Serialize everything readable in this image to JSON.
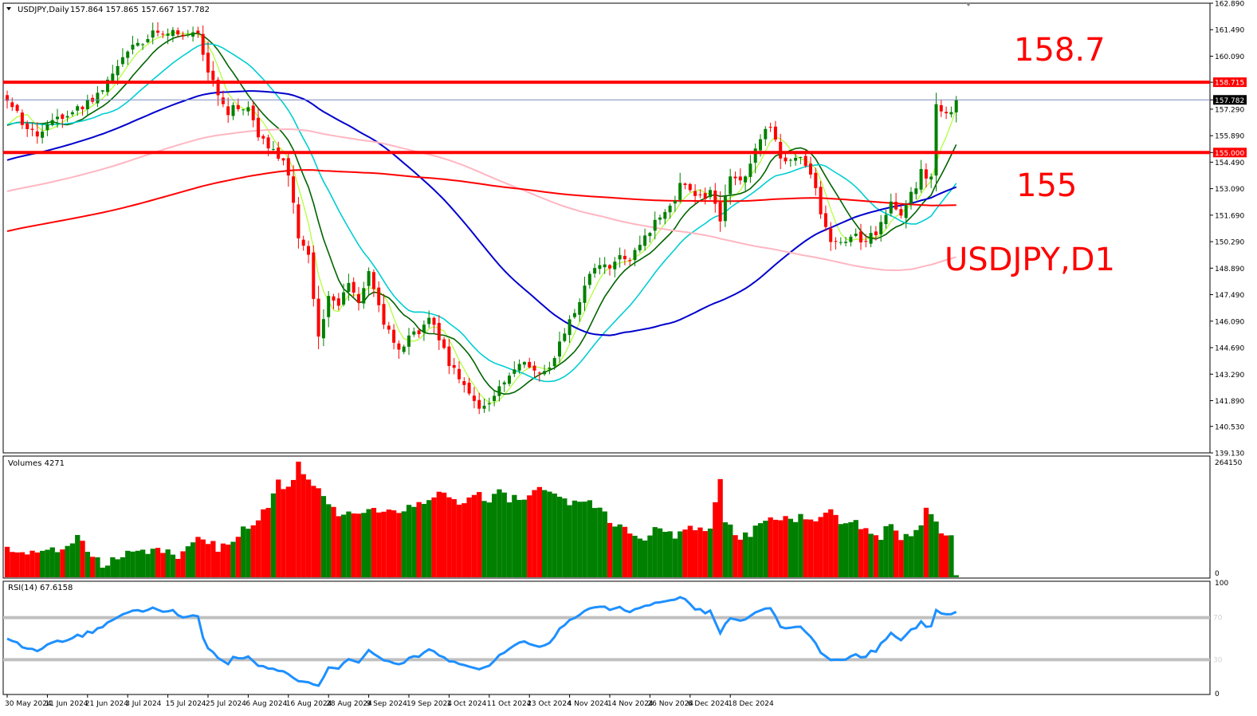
{
  "chart_data": [
    {
      "type": "candlestick",
      "title": "USDJPY,Daily",
      "ohlc_header": "157.864 157.865 157.667 157.782",
      "annotation": "USDJPY,D1",
      "ylim": [
        139.13,
        162.89
      ],
      "y_ticks": [
        "162.890",
        "161.490",
        "160.090",
        "158.715",
        "157.782",
        "157.290",
        "155.890",
        "155.000",
        "154.490",
        "153.090",
        "151.690",
        "150.290",
        "148.890",
        "147.490",
        "146.090",
        "144.690",
        "143.290",
        "141.890",
        "140.530",
        "139.130"
      ],
      "current_price": 157.782,
      "horizontal_lines": [
        {
          "value": 158.715,
          "label": "158.715",
          "annotation": "158.7"
        },
        {
          "value": 155.0,
          "label": "155.000",
          "annotation": "155"
        }
      ],
      "close_anchors": [
        [
          0,
          157.6
        ],
        [
          6,
          155.8
        ],
        [
          10,
          156.8
        ],
        [
          15,
          157.4
        ],
        [
          20,
          158.6
        ],
        [
          25,
          160.6
        ],
        [
          30,
          161.5
        ],
        [
          34,
          161.2
        ],
        [
          38,
          161.4
        ],
        [
          40,
          159.3
        ],
        [
          44,
          157.2
        ],
        [
          48,
          157.5
        ],
        [
          50,
          156.0
        ],
        [
          53,
          155.0
        ],
        [
          56,
          154.0
        ],
        [
          58,
          150.6
        ],
        [
          60,
          149.5
        ],
        [
          62,
          145.3
        ],
        [
          64,
          147.5
        ],
        [
          66,
          146.8
        ],
        [
          68,
          148.0
        ],
        [
          70,
          147.2
        ],
        [
          72,
          148.5
        ],
        [
          74,
          146.8
        ],
        [
          76,
          145.5
        ],
        [
          78,
          144.4
        ],
        [
          80,
          145.1
        ],
        [
          82,
          145.6
        ],
        [
          84,
          146.3
        ],
        [
          86,
          145.1
        ],
        [
          88,
          143.8
        ],
        [
          90,
          143.2
        ],
        [
          92,
          142.4
        ],
        [
          94,
          141.3
        ],
        [
          96,
          141.6
        ],
        [
          98,
          142.5
        ],
        [
          100,
          143.3
        ],
        [
          102,
          143.8
        ],
        [
          104,
          143.6
        ],
        [
          106,
          143.4
        ],
        [
          108,
          143.8
        ],
        [
          110,
          144.8
        ],
        [
          112,
          146.2
        ],
        [
          114,
          147.0
        ],
        [
          116,
          148.7
        ],
        [
          118,
          149.0
        ],
        [
          120,
          148.9
        ],
        [
          122,
          149.4
        ],
        [
          124,
          149.5
        ],
        [
          126,
          149.9
        ],
        [
          128,
          150.9
        ],
        [
          130,
          151.5
        ],
        [
          132,
          152.0
        ],
        [
          134,
          153.3
        ],
        [
          136,
          152.9
        ],
        [
          138,
          152.6
        ],
        [
          140,
          152.8
        ],
        [
          142,
          151.6
        ],
        [
          144,
          153.6
        ],
        [
          146,
          153.6
        ],
        [
          148,
          154.3
        ],
        [
          150,
          155.7
        ],
        [
          152,
          156.3
        ],
        [
          154,
          154.6
        ],
        [
          156,
          154.5
        ],
        [
          158,
          154.7
        ],
        [
          160,
          153.9
        ],
        [
          162,
          151.9
        ],
        [
          164,
          150.3
        ],
        [
          166,
          150.3
        ],
        [
          168,
          150.6
        ],
        [
          170,
          150.4
        ],
        [
          172,
          150.6
        ],
        [
          174,
          151.1
        ],
        [
          176,
          152.4
        ],
        [
          178,
          151.5
        ],
        [
          180,
          152.7
        ],
        [
          182,
          153.9
        ],
        [
          184,
          153.7
        ],
        [
          185,
          157.5
        ],
        [
          186,
          157.0
        ],
        [
          188,
          157.0
        ],
        [
          189,
          157.78
        ]
      ],
      "overlay_series": [
        {
          "name": "MA 5",
          "color": "#adff2f"
        },
        {
          "name": "MA 10",
          "color": "#006400"
        },
        {
          "name": "MA 20",
          "color": "#00ced1"
        },
        {
          "name": "MA 60",
          "color": "#0000cd"
        },
        {
          "name": "MA 120",
          "color": "#ffb6c1"
        },
        {
          "name": "MA 200",
          "color": "#ff0000"
        }
      ],
      "bull_color": "#008000",
      "bear_color": "#ff0000",
      "line_color": "#ff0000",
      "x_tick_labels": [
        "30 May 2024",
        "11 Jun 2024",
        "21 Jun 2024",
        "3 Jul 2024",
        "15 Jul 2024",
        "25 Jul 2024",
        "6 Aug 2024",
        "16 Aug 2024",
        "28 Aug 2024",
        "9 Sep 2024",
        "19 Sep 2024",
        "1 Oct 2024",
        "11 Oct 2024",
        "23 Oct 2024",
        "4 Nov 2024",
        "14 Nov 2024",
        "26 Nov 2024",
        "6 Dec 2024",
        "18 Dec 2024"
      ],
      "x_tick_bars": [
        0,
        8,
        16,
        24,
        32,
        40,
        48,
        56,
        64,
        72,
        80,
        88,
        96,
        104,
        112,
        120,
        128,
        136,
        144
      ]
    },
    {
      "type": "bar",
      "title": "Volumes 4271",
      "ylim": [
        0,
        264150
      ],
      "y_ticks": [
        "264150",
        "0"
      ],
      "volume_anchors": [
        [
          0,
          64000
        ],
        [
          10,
          60000
        ],
        [
          14,
          92000
        ],
        [
          17,
          58000
        ],
        [
          19,
          26000
        ],
        [
          22,
          40000
        ],
        [
          26,
          62000
        ],
        [
          30,
          57000
        ],
        [
          34,
          48000
        ],
        [
          38,
          96000
        ],
        [
          42,
          70000
        ],
        [
          45,
          84000
        ],
        [
          48,
          120000
        ],
        [
          52,
          160000
        ],
        [
          54,
          230000
        ],
        [
          56,
          210000
        ],
        [
          58,
          264000
        ],
        [
          60,
          228000
        ],
        [
          62,
          212000
        ],
        [
          64,
          170000
        ],
        [
          66,
          150000
        ],
        [
          70,
          158000
        ],
        [
          74,
          155000
        ],
        [
          78,
          160000
        ],
        [
          82,
          175000
        ],
        [
          86,
          190000
        ],
        [
          88,
          186000
        ],
        [
          92,
          180000
        ],
        [
          94,
          198000
        ],
        [
          96,
          182000
        ],
        [
          98,
          196000
        ],
        [
          100,
          184000
        ],
        [
          104,
          188000
        ],
        [
          106,
          210000
        ],
        [
          108,
          200000
        ],
        [
          110,
          182000
        ],
        [
          112,
          176000
        ],
        [
          114,
          180000
        ],
        [
          116,
          175000
        ],
        [
          118,
          168000
        ],
        [
          120,
          130000
        ],
        [
          122,
          120000
        ],
        [
          124,
          108000
        ],
        [
          126,
          102000
        ],
        [
          128,
          92000
        ],
        [
          130,
          122000
        ],
        [
          132,
          105000
        ],
        [
          134,
          96000
        ],
        [
          136,
          124000
        ],
        [
          138,
          120000
        ],
        [
          140,
          110000
        ],
        [
          142,
          234000
        ],
        [
          143,
          128000
        ],
        [
          145,
          98000
        ],
        [
          148,
          94000
        ],
        [
          150,
          136000
        ],
        [
          154,
          142000
        ],
        [
          158,
          140000
        ],
        [
          161,
          142000
        ],
        [
          163,
          160000
        ],
        [
          165,
          140000
        ],
        [
          167,
          132000
        ],
        [
          170,
          118000
        ],
        [
          172,
          104000
        ],
        [
          174,
          96000
        ],
        [
          176,
          122000
        ],
        [
          178,
          92000
        ],
        [
          180,
          106000
        ],
        [
          182,
          114000
        ],
        [
          183,
          158000
        ],
        [
          185,
          140000
        ],
        [
          186,
          104000
        ],
        [
          188,
          90000
        ],
        [
          189,
          3000
        ]
      ]
    },
    {
      "type": "line",
      "title": "RSI(14) 67.6158",
      "ylim": [
        0,
        100
      ],
      "y_ticks": [
        "100",
        "70",
        "30",
        "0"
      ],
      "levels": [
        70,
        30
      ],
      "level_labels": [
        "70",
        "30"
      ],
      "color": "#1e90ff"
    }
  ]
}
